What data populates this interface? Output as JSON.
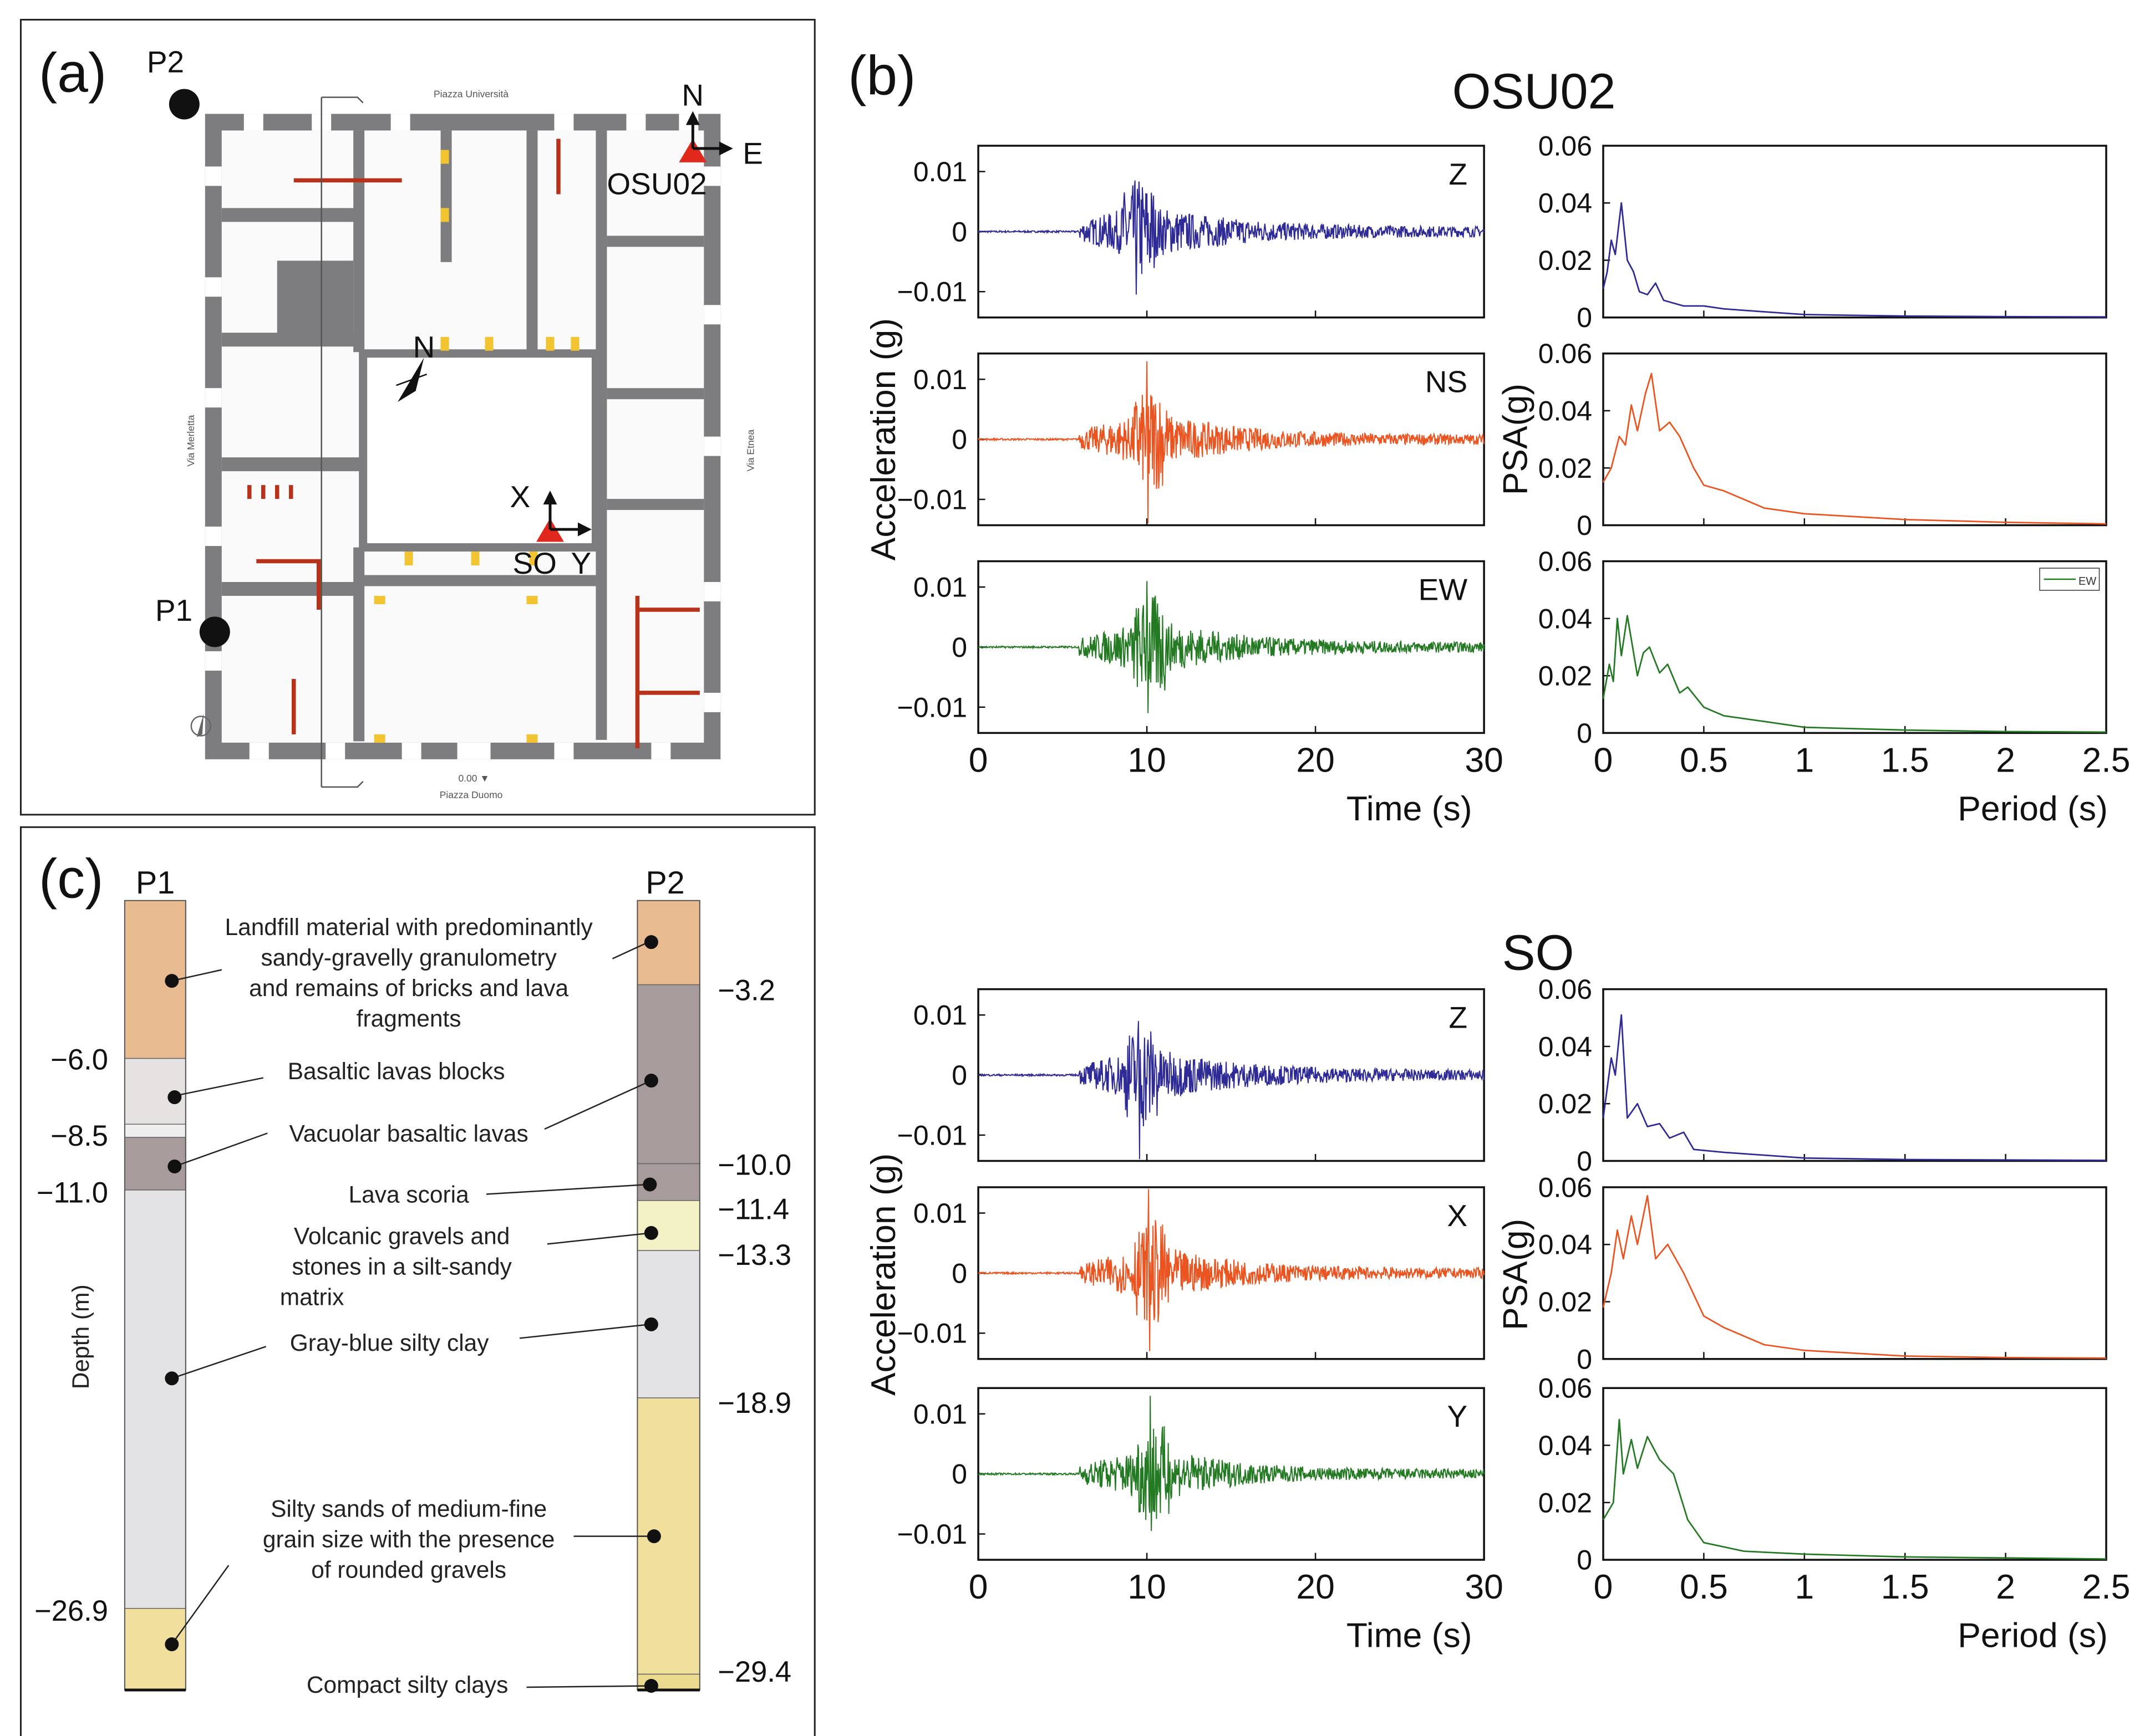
{
  "panel_labels": {
    "a": "(a)",
    "b": "(b)",
    "c": "(c)"
  },
  "map": {
    "streets": {
      "north": "Piazza Università",
      "south": "Piazza Duomo",
      "west": "Via Merletta",
      "east": "Via Etnea"
    },
    "elevation_ref": "0.00 ▼",
    "points": {
      "p1": "P1",
      "p2": "P2"
    },
    "stations": {
      "osu02": {
        "name": "OSU02",
        "axis1": "N",
        "axis2": "E"
      },
      "so": {
        "name": "SO",
        "axis1": "X",
        "axis2": "Y"
      }
    },
    "north_arrow": "N",
    "colors": {
      "wall": "#7d7d80",
      "station": "#e0281c",
      "partition": "#b8321a",
      "column": "#f2c431"
    }
  },
  "chart_data": [
    {
      "type": "line",
      "title": "OSU02",
      "xlabel": "Time (s)",
      "ylabel": "Acceleration (g)",
      "xlim": [
        0,
        30
      ],
      "ylim": [
        -0.0143,
        0.0143
      ],
      "xticks": [
        "0",
        "10",
        "20",
        "30"
      ],
      "yticks": [
        "0.01",
        "0",
        "−0.01"
      ],
      "series": [
        {
          "name": "Z",
          "color": "#2e2a96",
          "onset_s": 6,
          "peak_time_s": 9.3,
          "peak_pos_g": 0.0085,
          "peak_neg_g": -0.0105,
          "decay_s": 5
        },
        {
          "name": "NS",
          "color": "#ea5420",
          "onset_s": 6,
          "peak_time_s": 10,
          "peak_pos_g": 0.013,
          "peak_neg_g": -0.014,
          "decay_s": 4.5
        },
        {
          "name": "EW",
          "color": "#237a23",
          "onset_s": 6,
          "peak_time_s": 10,
          "peak_pos_g": 0.011,
          "peak_neg_g": -0.011,
          "decay_s": 4.5
        }
      ]
    },
    {
      "type": "line",
      "title": "OSU02",
      "xlabel": "Period (s)",
      "ylabel": "PSA(g)",
      "xlim": [
        0,
        2.5
      ],
      "ylim": [
        0,
        0.06
      ],
      "xticks": [
        "0",
        "0.5",
        "1",
        "1.5",
        "2",
        "2.5"
      ],
      "yticks": [
        "0.06",
        "0.04",
        "0.02",
        "0"
      ],
      "legend": {
        "entry": "EW",
        "placement": "top-right",
        "panel": 2
      },
      "series": [
        {
          "name": "Z",
          "color": "#2e2a96",
          "points": [
            [
              0,
              0.01
            ],
            [
              0.02,
              0.016
            ],
            [
              0.04,
              0.027
            ],
            [
              0.06,
              0.022
            ],
            [
              0.09,
              0.04
            ],
            [
              0.12,
              0.02
            ],
            [
              0.15,
              0.016
            ],
            [
              0.18,
              0.009
            ],
            [
              0.22,
              0.008
            ],
            [
              0.26,
              0.012
            ],
            [
              0.3,
              0.006
            ],
            [
              0.4,
              0.004
            ],
            [
              0.5,
              0.004
            ],
            [
              0.6,
              0.003
            ],
            [
              0.8,
              0.002
            ],
            [
              1,
              0.001
            ],
            [
              1.5,
              0.0005
            ],
            [
              2,
              0.0003
            ],
            [
              2.5,
              0.0002
            ]
          ]
        },
        {
          "name": "NS",
          "color": "#ea5420",
          "points": [
            [
              0,
              0.015
            ],
            [
              0.04,
              0.02
            ],
            [
              0.08,
              0.031
            ],
            [
              0.11,
              0.028
            ],
            [
              0.14,
              0.042
            ],
            [
              0.17,
              0.033
            ],
            [
              0.21,
              0.046
            ],
            [
              0.24,
              0.053
            ],
            [
              0.28,
              0.033
            ],
            [
              0.33,
              0.036
            ],
            [
              0.38,
              0.031
            ],
            [
              0.45,
              0.02
            ],
            [
              0.5,
              0.014
            ],
            [
              0.6,
              0.012
            ],
            [
              0.8,
              0.006
            ],
            [
              1,
              0.004
            ],
            [
              1.5,
              0.002
            ],
            [
              2,
              0.001
            ],
            [
              2.5,
              0.0005
            ]
          ]
        },
        {
          "name": "EW",
          "color": "#237a23",
          "points": [
            [
              0,
              0.012
            ],
            [
              0.03,
              0.024
            ],
            [
              0.05,
              0.018
            ],
            [
              0.07,
              0.04
            ],
            [
              0.09,
              0.027
            ],
            [
              0.12,
              0.041
            ],
            [
              0.17,
              0.02
            ],
            [
              0.2,
              0.028
            ],
            [
              0.23,
              0.03
            ],
            [
              0.28,
              0.021
            ],
            [
              0.32,
              0.024
            ],
            [
              0.38,
              0.014
            ],
            [
              0.42,
              0.016
            ],
            [
              0.5,
              0.009
            ],
            [
              0.6,
              0.006
            ],
            [
              0.8,
              0.004
            ],
            [
              1,
              0.002
            ],
            [
              1.5,
              0.001
            ],
            [
              2,
              0.0005
            ],
            [
              2.5,
              0.0003
            ]
          ]
        }
      ]
    },
    {
      "type": "line",
      "title": "SO",
      "xlabel": "Time (s)",
      "ylabel": "Acceleration (g)",
      "xlim": [
        0,
        30
      ],
      "ylim": [
        -0.0143,
        0.0143
      ],
      "xticks": [
        "0",
        "10",
        "20",
        "30"
      ],
      "yticks": [
        "0.01",
        "0",
        "−0.01"
      ],
      "series": [
        {
          "name": "Z",
          "color": "#2e2a96",
          "onset_s": 6,
          "peak_time_s": 9.5,
          "peak_pos_g": 0.009,
          "peak_neg_g": -0.014,
          "decay_s": 5
        },
        {
          "name": "X",
          "color": "#ea5420",
          "onset_s": 6,
          "peak_time_s": 10.1,
          "peak_pos_g": 0.014,
          "peak_neg_g": -0.013,
          "decay_s": 4.5
        },
        {
          "name": "Y",
          "color": "#237a23",
          "onset_s": 6,
          "peak_time_s": 10.2,
          "peak_pos_g": 0.013,
          "peak_neg_g": -0.0095,
          "decay_s": 4
        }
      ]
    },
    {
      "type": "line",
      "title": "SO",
      "xlabel": "Period (s)",
      "ylabel": "PSA(g)",
      "xlim": [
        0,
        2.5
      ],
      "ylim": [
        0,
        0.06
      ],
      "xticks": [
        "0",
        "0.5",
        "1",
        "1.5",
        "2",
        "2.5"
      ],
      "yticks": [
        "0.06",
        "0.04",
        "0.02",
        "0"
      ],
      "series": [
        {
          "name": "Z",
          "color": "#2e2a96",
          "points": [
            [
              0,
              0.015
            ],
            [
              0.04,
              0.036
            ],
            [
              0.06,
              0.03
            ],
            [
              0.09,
              0.051
            ],
            [
              0.12,
              0.015
            ],
            [
              0.17,
              0.02
            ],
            [
              0.22,
              0.012
            ],
            [
              0.28,
              0.013
            ],
            [
              0.33,
              0.008
            ],
            [
              0.4,
              0.01
            ],
            [
              0.45,
              0.004
            ],
            [
              0.6,
              0.003
            ],
            [
              1,
              0.001
            ],
            [
              1.5,
              0.0005
            ],
            [
              2.5,
              0.0002
            ]
          ]
        },
        {
          "name": "X",
          "color": "#ea5420",
          "points": [
            [
              0,
              0.018
            ],
            [
              0.04,
              0.03
            ],
            [
              0.07,
              0.045
            ],
            [
              0.1,
              0.035
            ],
            [
              0.14,
              0.05
            ],
            [
              0.17,
              0.04
            ],
            [
              0.22,
              0.057
            ],
            [
              0.26,
              0.035
            ],
            [
              0.32,
              0.04
            ],
            [
              0.4,
              0.03
            ],
            [
              0.5,
              0.015
            ],
            [
              0.6,
              0.011
            ],
            [
              0.8,
              0.005
            ],
            [
              1,
              0.003
            ],
            [
              1.5,
              0.001
            ],
            [
              2,
              0.0005
            ],
            [
              2.5,
              0.0003
            ]
          ]
        },
        {
          "name": "Y",
          "color": "#237a23",
          "points": [
            [
              0,
              0.014
            ],
            [
              0.05,
              0.02
            ],
            [
              0.08,
              0.049
            ],
            [
              0.1,
              0.03
            ],
            [
              0.14,
              0.042
            ],
            [
              0.17,
              0.032
            ],
            [
              0.22,
              0.043
            ],
            [
              0.28,
              0.035
            ],
            [
              0.35,
              0.03
            ],
            [
              0.42,
              0.014
            ],
            [
              0.5,
              0.006
            ],
            [
              0.7,
              0.003
            ],
            [
              1,
              0.002
            ],
            [
              1.5,
              0.001
            ],
            [
              2.5,
              0.0003
            ]
          ]
        }
      ]
    }
  ],
  "strat": {
    "ylabel": "Depth (m)",
    "columns": [
      {
        "name": "P1",
        "bottom_m": 30,
        "layers": [
          {
            "top": 0,
            "bottom": 6.0,
            "color": "#e9bb90"
          },
          {
            "top": 6.0,
            "bottom": 8.5,
            "color": "#e6e2e2"
          },
          {
            "top": 8.5,
            "bottom": 9.0,
            "color": "#efeeee"
          },
          {
            "top": 9.0,
            "bottom": 11.0,
            "color": "#a89b9c"
          },
          {
            "top": 11.0,
            "bottom": 26.9,
            "color": "#e3e3e5"
          },
          {
            "top": 26.9,
            "bottom": 30,
            "color": "#f1df9e"
          }
        ],
        "depth_labels": [
          "−6.0",
          "−8.5",
          "−11.0",
          "−26.9"
        ]
      },
      {
        "name": "P2",
        "bottom_m": 30,
        "layers": [
          {
            "top": 0,
            "bottom": 3.2,
            "color": "#e9bb90"
          },
          {
            "top": 3.2,
            "bottom": 10.0,
            "color": "#a89b9c"
          },
          {
            "top": 10.0,
            "bottom": 11.4,
            "color": "#a89b9c"
          },
          {
            "top": 11.4,
            "bottom": 13.3,
            "color": "#f3f1c6"
          },
          {
            "top": 13.3,
            "bottom": 18.9,
            "color": "#e3e3e5"
          },
          {
            "top": 18.9,
            "bottom": 29.4,
            "color": "#f1df9e"
          },
          {
            "top": 29.4,
            "bottom": 30,
            "color": "#eadb8e"
          }
        ],
        "depth_labels": [
          "−3.2",
          "−10.0",
          "−11.4",
          "−13.3",
          "−18.9",
          "−29.4"
        ]
      }
    ],
    "descriptions": {
      "landfill": [
        "Landfill material with predominantly",
        "sandy-gravelly granulometry",
        "and remains of bricks and lava",
        "fragments"
      ],
      "basaltic_blocks": [
        "Basaltic lavas blocks"
      ],
      "vacuolar": [
        "Vacuolar basaltic lavas"
      ],
      "scoria": [
        "Lava scoria"
      ],
      "volcanic_gravels": [
        "Volcanic gravels and",
        "stones in a silt-sandy",
        "matrix"
      ],
      "clay": [
        "Gray-blue silty clay"
      ],
      "silty_sands": [
        "Silty sands of medium-fine",
        "grain size with the presence",
        "of rounded gravels"
      ],
      "compact": [
        "Compact silty clays"
      ]
    }
  }
}
